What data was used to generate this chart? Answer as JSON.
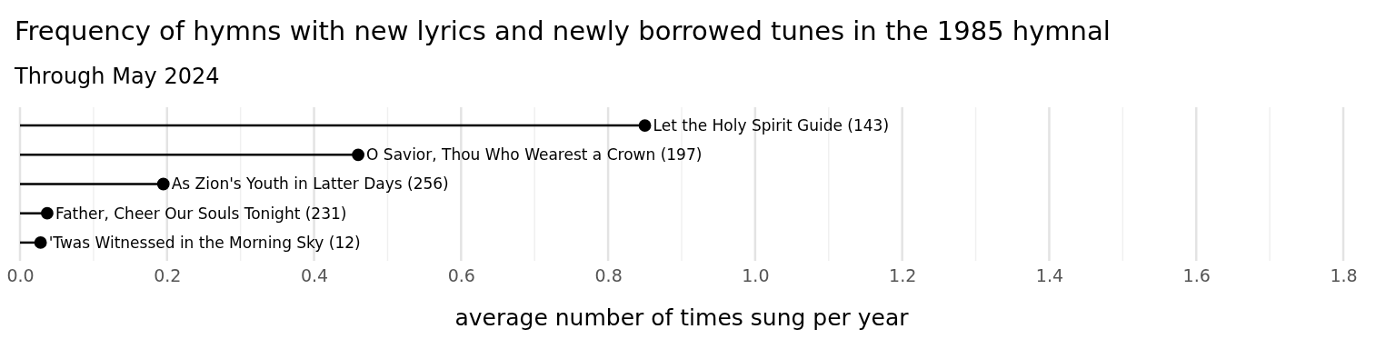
{
  "chart_data": {
    "type": "lollipop",
    "orientation": "horizontal",
    "title": "Frequency of hymns with new lyrics and newly borrowed tunes in the 1985 hymnal",
    "subtitle": "Through May 2024",
    "xlabel": "average number of times sung per year",
    "categories": [
      "Let the Holy Spirit Guide (143)",
      "O Savior, Thou Who Wearest a Crown (197)",
      "As Zion's Youth in Latter Days (256)",
      "Father, Cheer Our Souls Tonight (231)",
      "'Twas Witnessed in the Morning Sky (12)"
    ],
    "values": [
      0.85,
      0.46,
      0.195,
      0.037,
      0.028
    ],
    "color": "#000000",
    "marker": "circle",
    "grid": "x",
    "tick_labels": "x",
    "xlim": [
      0,
      1.8
    ],
    "xticks": [
      {
        "value": 0,
        "label": "0.0"
      },
      {
        "value": 0.1,
        "label": null
      },
      0.2,
      {
        "value": 0.3,
        "label": null
      },
      0.4,
      {
        "value": 0.5,
        "label": null
      },
      0.6,
      {
        "value": 0.7,
        "label": null
      },
      0.8,
      {
        "value": 0.9,
        "label": null
      },
      {
        "value": 1,
        "label": "1.0"
      },
      {
        "value": 1.1,
        "label": null
      },
      1.2,
      {
        "value": 1.3,
        "label": null
      },
      1.4,
      {
        "value": 1.5,
        "label": null
      },
      1.6,
      {
        "value": 1.7,
        "label": null
      },
      1.8
    ]
  }
}
